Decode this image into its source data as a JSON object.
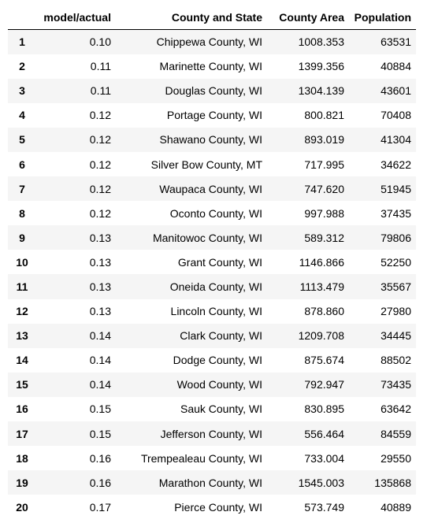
{
  "table": {
    "columns": [
      "",
      "model/actual",
      "County and State",
      "County Area",
      "Population"
    ],
    "rows": [
      [
        "1",
        "0.10",
        "Chippewa County, WI",
        "1008.353",
        "63531"
      ],
      [
        "2",
        "0.11",
        "Marinette County, WI",
        "1399.356",
        "40884"
      ],
      [
        "3",
        "0.11",
        "Douglas County, WI",
        "1304.139",
        "43601"
      ],
      [
        "4",
        "0.12",
        "Portage County, WI",
        "800.821",
        "70408"
      ],
      [
        "5",
        "0.12",
        "Shawano County, WI",
        "893.019",
        "41304"
      ],
      [
        "6",
        "0.12",
        "Silver Bow County, MT",
        "717.995",
        "34622"
      ],
      [
        "7",
        "0.12",
        "Waupaca County, WI",
        "747.620",
        "51945"
      ],
      [
        "8",
        "0.12",
        "Oconto County, WI",
        "997.988",
        "37435"
      ],
      [
        "9",
        "0.13",
        "Manitowoc County, WI",
        "589.312",
        "79806"
      ],
      [
        "10",
        "0.13",
        "Grant County, WI",
        "1146.866",
        "52250"
      ],
      [
        "11",
        "0.13",
        "Oneida County, WI",
        "1113.479",
        "35567"
      ],
      [
        "12",
        "0.13",
        "Lincoln County, WI",
        "878.860",
        "27980"
      ],
      [
        "13",
        "0.14",
        "Clark County, WI",
        "1209.708",
        "34445"
      ],
      [
        "14",
        "0.14",
        "Dodge County, WI",
        "875.674",
        "88502"
      ],
      [
        "15",
        "0.14",
        "Wood County, WI",
        "792.947",
        "73435"
      ],
      [
        "16",
        "0.15",
        "Sauk County, WI",
        "830.895",
        "63642"
      ],
      [
        "17",
        "0.15",
        "Jefferson County, WI",
        "556.464",
        "84559"
      ],
      [
        "18",
        "0.16",
        "Trempealeau County, WI",
        "733.004",
        "29550"
      ],
      [
        "19",
        "0.16",
        "Marathon County, WI",
        "1545.003",
        "135868"
      ],
      [
        "20",
        "0.17",
        "Pierce County, WI",
        "573.749",
        "40889"
      ]
    ]
  }
}
